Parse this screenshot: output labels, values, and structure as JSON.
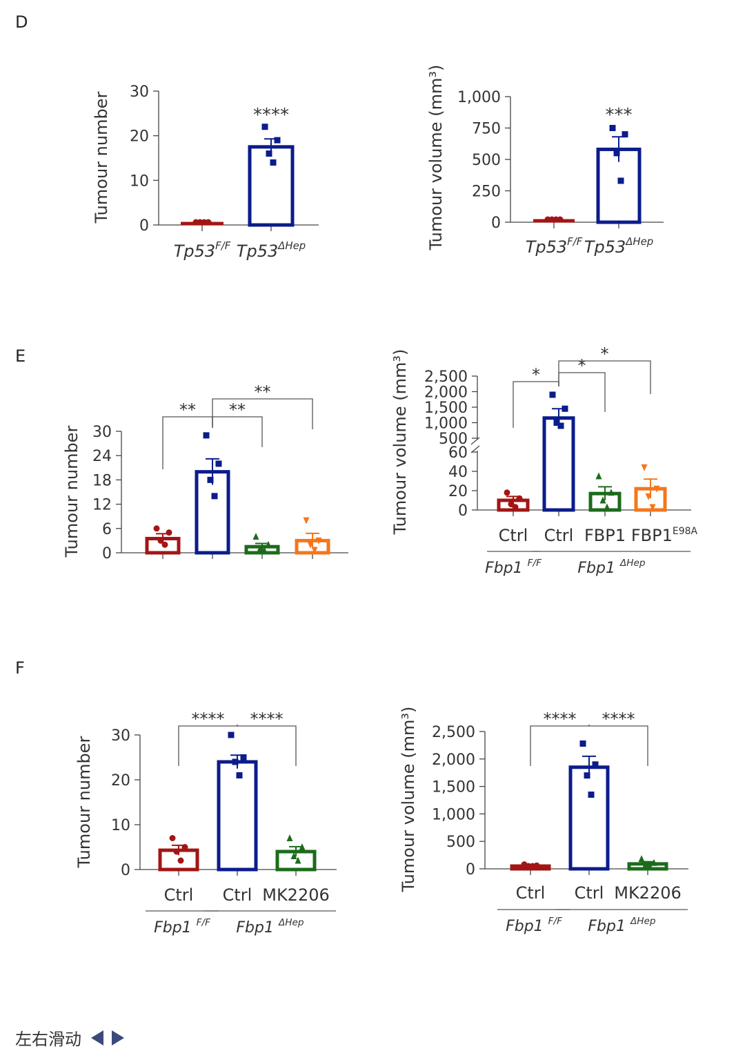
{
  "panels": {
    "D": "D",
    "E": "E",
    "F": "F"
  },
  "footer": {
    "swipe_text": "左右滑动"
  },
  "colors": {
    "red": "#a31515",
    "navy": "#0b1c8c",
    "green": "#1c6b1c",
    "orange": "#f5761a",
    "axis": "#444444"
  },
  "chart_data": [
    {
      "id": "D1",
      "type": "bar",
      "panel": "D",
      "ylabel": "Tumour number",
      "ylim": [
        0,
        30
      ],
      "yticks": [
        0,
        10,
        20,
        30
      ],
      "xlabels": [
        {
          "base": "Tp53",
          "sup": "F/F"
        },
        {
          "base": "Tp53",
          "sup": "ΔHep"
        }
      ],
      "bars": [
        {
          "value": 0,
          "sem": 0,
          "color": "red",
          "points": [
            0,
            0,
            0,
            0
          ],
          "marker": "circle"
        },
        {
          "value": 17.5,
          "sem": 1.8,
          "color": "navy",
          "points": [
            22,
            19,
            16,
            14
          ],
          "marker": "square"
        }
      ],
      "sig": [
        {
          "text": "****",
          "over": 1
        }
      ]
    },
    {
      "id": "D2",
      "type": "bar",
      "panel": "D",
      "ylabel": "Tumour volume (mm³)",
      "ylim": [
        0,
        1000
      ],
      "yticks": [
        0,
        250,
        500,
        750,
        1000
      ],
      "yticklabels": [
        "0",
        "250",
        "500",
        "750",
        "1,000"
      ],
      "xlabels": [
        {
          "base": "Tp53",
          "sup": "F/F"
        },
        {
          "base": "Tp53",
          "sup": "ΔHep"
        }
      ],
      "bars": [
        {
          "value": 0,
          "sem": 0,
          "color": "red",
          "points": [
            0,
            0,
            0,
            0
          ],
          "marker": "circle"
        },
        {
          "value": 580,
          "sem": 100,
          "color": "navy",
          "points": [
            750,
            700,
            550,
            330
          ],
          "marker": "square"
        }
      ],
      "sig": [
        {
          "text": "***",
          "over": 1
        }
      ]
    },
    {
      "id": "E1",
      "type": "bar",
      "panel": "E",
      "ylabel": "Tumour number",
      "ylim": [
        0,
        30
      ],
      "yticks": [
        0,
        6,
        12,
        18,
        24,
        30
      ],
      "xlabels": [],
      "bars": [
        {
          "value": 3.5,
          "sem": 1.2,
          "color": "red",
          "points": [
            6,
            5,
            3,
            2
          ],
          "marker": "circle"
        },
        {
          "value": 20,
          "sem": 3.2,
          "color": "navy",
          "points": [
            29,
            22,
            18,
            14
          ],
          "marker": "square"
        },
        {
          "value": 1.5,
          "sem": 0.8,
          "color": "green",
          "points": [
            4,
            2,
            1,
            0
          ],
          "marker": "triangle"
        },
        {
          "value": 3,
          "sem": 1.8,
          "color": "orange",
          "points": [
            8,
            3,
            2,
            0
          ],
          "marker": "triangle-down"
        }
      ],
      "sig": [
        {
          "text": "**",
          "from": 0,
          "to": 1,
          "level": 0
        },
        {
          "text": "**",
          "from": 1,
          "to": 2,
          "level": 0
        },
        {
          "text": "**",
          "from": 1,
          "to": 3,
          "level": 1
        }
      ]
    },
    {
      "id": "E2",
      "type": "bar",
      "panel": "E",
      "broken_axis": true,
      "ylabel": "Tumour volume (mm³)",
      "lower_range": [
        0,
        60
      ],
      "upper_range": [
        500,
        2500
      ],
      "yticks_lower": [
        0,
        20,
        40,
        60
      ],
      "yticks_upper": [
        500,
        1000,
        1500,
        2000,
        2500
      ],
      "yticklabels_upper": [
        "500",
        "1,000",
        "1,500",
        "2,000",
        "2,500"
      ],
      "categories": [
        "Ctrl",
        "Ctrl",
        "FBP1",
        "FBP1"
      ],
      "category_sups": [
        "",
        "",
        "",
        "E98A"
      ],
      "groups": [
        {
          "base": "Fbp1",
          "sup": "F/F",
          "span": [
            0,
            0
          ]
        },
        {
          "base": "Fbp1",
          "sup": "ΔHep",
          "span": [
            1,
            3
          ]
        }
      ],
      "bars": [
        {
          "value": 10,
          "sem": 4,
          "color": "red",
          "points": [
            18,
            12,
            6,
            3
          ],
          "marker": "circle"
        },
        {
          "value": 1150,
          "sem": 300,
          "color": "navy",
          "points": [
            1900,
            1450,
            1000,
            900
          ],
          "marker": "square"
        },
        {
          "value": 17,
          "sem": 7,
          "color": "green",
          "points": [
            35,
            18,
            10,
            0
          ],
          "marker": "triangle"
        },
        {
          "value": 22,
          "sem": 10,
          "color": "orange",
          "points": [
            44,
            22,
            14,
            0
          ],
          "marker": "triangle-down"
        }
      ],
      "sig": [
        {
          "text": "*",
          "from": 0,
          "to": 1,
          "level": 1
        },
        {
          "text": "*",
          "from": 1,
          "to": 2,
          "level": 0
        },
        {
          "text": "*",
          "from": 1,
          "to": 3,
          "level": 2
        }
      ]
    },
    {
      "id": "F1",
      "type": "bar",
      "panel": "F",
      "ylabel": "Tumour number",
      "ylim": [
        0,
        30
      ],
      "yticks": [
        0,
        10,
        20,
        30
      ],
      "categories": [
        "Ctrl",
        "Ctrl",
        "MK2206"
      ],
      "groups": [
        {
          "base": "Fbp1",
          "sup": "F/F",
          "span": [
            0,
            0
          ]
        },
        {
          "base": "Fbp1",
          "sup": "ΔHep",
          "span": [
            1,
            2
          ]
        }
      ],
      "bars": [
        {
          "value": 4.3,
          "sem": 1.1,
          "color": "red",
          "points": [
            7,
            5,
            4,
            2
          ],
          "marker": "circle"
        },
        {
          "value": 24,
          "sem": 1.5,
          "color": "navy",
          "points": [
            30,
            25,
            24,
            21
          ],
          "marker": "square"
        },
        {
          "value": 4,
          "sem": 1.1,
          "color": "green",
          "points": [
            7,
            5,
            3,
            2
          ],
          "marker": "triangle"
        }
      ],
      "sig": [
        {
          "text": "****",
          "from": 0,
          "to": 1,
          "level": 0
        },
        {
          "text": "****",
          "from": 1,
          "to": 2,
          "level": 0
        }
      ]
    },
    {
      "id": "F2",
      "type": "bar",
      "panel": "F",
      "ylabel": "Tumour volume (mm³)",
      "ylim": [
        0,
        2500
      ],
      "yticks": [
        0,
        500,
        1000,
        1500,
        2000,
        2500
      ],
      "yticklabels": [
        "0",
        "500",
        "1,000",
        "1,500",
        "2,000",
        "2,500"
      ],
      "categories": [
        "Ctrl",
        "Ctrl",
        "MK2206"
      ],
      "groups": [
        {
          "base": "Fbp1",
          "sup": "F/F",
          "span": [
            0,
            0
          ]
        },
        {
          "base": "Fbp1",
          "sup": "ΔHep",
          "span": [
            1,
            2
          ]
        }
      ],
      "bars": [
        {
          "value": 50,
          "sem": 20,
          "color": "red",
          "points": [
            80,
            60,
            40,
            20
          ],
          "marker": "circle"
        },
        {
          "value": 1850,
          "sem": 200,
          "color": "navy",
          "points": [
            2280,
            1900,
            1700,
            1350
          ],
          "marker": "square"
        },
        {
          "value": 90,
          "sem": 40,
          "color": "green",
          "points": [
            180,
            110,
            80,
            40
          ],
          "marker": "triangle"
        }
      ],
      "sig": [
        {
          "text": "****",
          "from": 0,
          "to": 1,
          "level": 0
        },
        {
          "text": "****",
          "from": 1,
          "to": 2,
          "level": 0
        }
      ]
    }
  ]
}
